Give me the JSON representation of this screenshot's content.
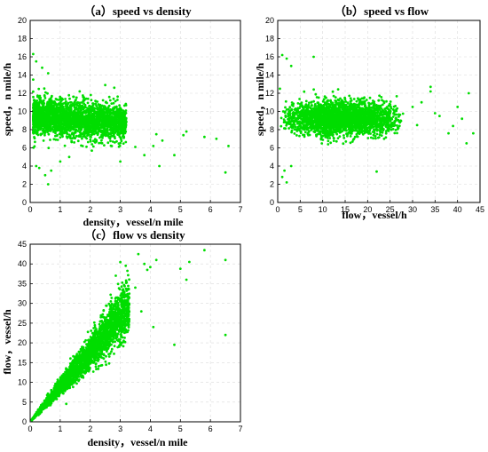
{
  "chart_data": [
    {
      "id": "a",
      "type": "scatter",
      "title": "（a）speed vs density",
      "xlabel": "density，vessel/n mile",
      "ylabel": "speed，n mile/h",
      "xlim": [
        0,
        7
      ],
      "ylim": [
        0,
        20
      ],
      "xticks": [
        0,
        1,
        2,
        3,
        4,
        5,
        6,
        7
      ],
      "yticks": [
        0,
        2,
        4,
        6,
        8,
        10,
        12,
        14,
        16,
        18,
        20
      ],
      "grid": true,
      "color": "#00dd00",
      "cluster": {
        "x_range": [
          0.1,
          3.2
        ],
        "y_center": 9.2,
        "y_spread": 1.6
      },
      "points": [
        [
          0.1,
          16.3
        ],
        [
          0.2,
          15.5
        ],
        [
          0.4,
          14.8
        ],
        [
          0.6,
          14.2
        ],
        [
          0.1,
          13.5
        ],
        [
          0.2,
          4.0
        ],
        [
          0.5,
          3.0
        ],
        [
          0.7,
          3.5
        ],
        [
          0.6,
          2.0
        ],
        [
          0.3,
          3.8
        ],
        [
          1.0,
          4.5
        ],
        [
          1.3,
          5.0
        ],
        [
          4.1,
          6.2
        ],
        [
          4.2,
          7.5
        ],
        [
          4.4,
          6.8
        ],
        [
          4.3,
          4.0
        ],
        [
          4.8,
          5.2
        ],
        [
          5.1,
          7.4
        ],
        [
          5.2,
          7.8
        ],
        [
          5.8,
          7.2
        ],
        [
          6.2,
          7.0
        ],
        [
          6.5,
          3.3
        ],
        [
          6.6,
          6.2
        ],
        [
          3.8,
          5.2
        ],
        [
          3.5,
          6.1
        ],
        [
          2.8,
          12.6
        ],
        [
          2.5,
          12.9
        ],
        [
          3.0,
          4.5
        ]
      ]
    },
    {
      "id": "b",
      "type": "scatter",
      "title": "（b）speed vs flow",
      "xlabel": "flow，vessel/h",
      "ylabel": "speed，n mile/h",
      "xlim": [
        0,
        45
      ],
      "ylim": [
        0,
        20
      ],
      "xticks": [
        0,
        5,
        10,
        15,
        20,
        25,
        30,
        35,
        40,
        45
      ],
      "yticks": [
        0,
        2,
        4,
        6,
        8,
        10,
        12,
        14,
        16,
        18,
        20
      ],
      "grid": true,
      "color": "#00dd00",
      "cluster": {
        "x_range": [
          0.5,
          28
        ],
        "y_center": 9.2,
        "y_spread": 1.5
      },
      "points": [
        [
          1.0,
          16.2
        ],
        [
          2.0,
          15.8
        ],
        [
          3.0,
          15.0
        ],
        [
          8.0,
          16.0
        ],
        [
          0.5,
          12.5
        ],
        [
          1.0,
          2.8
        ],
        [
          2.0,
          2.2
        ],
        [
          1.5,
          3.5
        ],
        [
          3.0,
          4.0
        ],
        [
          30,
          10.5
        ],
        [
          31,
          8.5
        ],
        [
          32,
          11.0
        ],
        [
          34,
          12.2
        ],
        [
          35,
          9.8
        ],
        [
          36,
          9.5
        ],
        [
          38,
          7.6
        ],
        [
          39,
          8.4
        ],
        [
          40,
          10.5
        ],
        [
          41,
          9.2
        ],
        [
          42,
          6.5
        ],
        [
          42.5,
          12.0
        ],
        [
          43.5,
          7.6
        ],
        [
          22,
          3.4
        ],
        [
          34,
          12.7
        ]
      ]
    },
    {
      "id": "c",
      "type": "scatter",
      "title": "（c）flow vs density",
      "xlabel": "density，vessel/n mile",
      "ylabel": "flow，vessel/h",
      "xlim": [
        0,
        7
      ],
      "ylim": [
        0,
        45
      ],
      "xticks": [
        0,
        1,
        2,
        3,
        4,
        5,
        6,
        7
      ],
      "yticks": [
        0,
        5,
        10,
        15,
        20,
        25,
        30,
        35,
        40,
        45
      ],
      "grid": true,
      "color": "#00dd00",
      "cluster": {
        "x_range": [
          0.05,
          3.3
        ],
        "slope": 8.9,
        "spread": 0.12
      },
      "points": [
        [
          3.6,
          42.5
        ],
        [
          3.8,
          40.0
        ],
        [
          3.9,
          38.5
        ],
        [
          4.0,
          39.2
        ],
        [
          4.2,
          41.0
        ],
        [
          5.0,
          38.8
        ],
        [
          5.2,
          36.0
        ],
        [
          5.3,
          40.5
        ],
        [
          5.8,
          43.5
        ],
        [
          6.5,
          41.0
        ],
        [
          6.5,
          22.0
        ],
        [
          4.8,
          19.5
        ],
        [
          3.5,
          34.0
        ],
        [
          3.3,
          32.5
        ],
        [
          3.7,
          28.0
        ],
        [
          4.1,
          24.0
        ],
        [
          3.2,
          35.5
        ],
        [
          2.9,
          31.5
        ]
      ]
    }
  ]
}
